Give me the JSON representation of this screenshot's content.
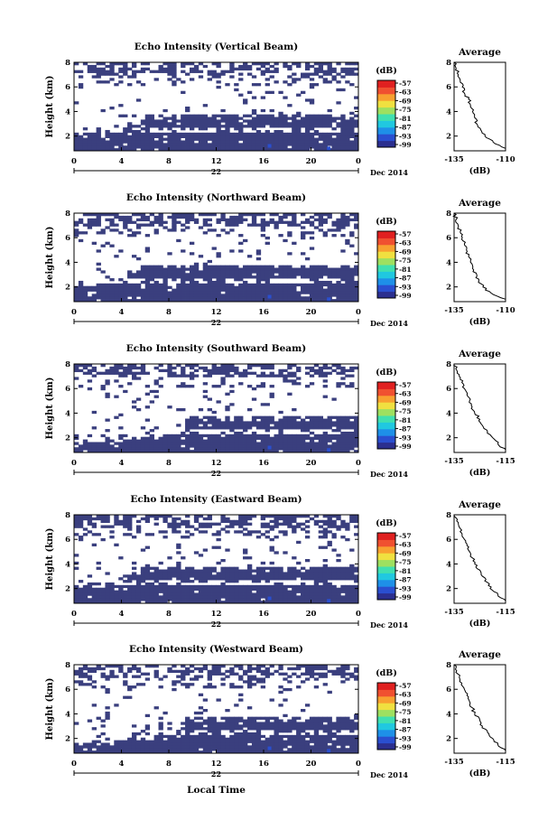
{
  "chart_data": {
    "type": "heatmap",
    "day_label": "22",
    "month_label": "Dec 2014",
    "x_title": "Local Time",
    "time_ticks": [
      "0",
      "4",
      "8",
      "12",
      "16",
      "20",
      "0"
    ],
    "height_ylabel": "Height (km)",
    "height_ticks": [
      "2",
      "4",
      "6",
      "8"
    ],
    "height_range_km": [
      0.8,
      8.0
    ],
    "time_range_hours": [
      0,
      24
    ],
    "colorbar": {
      "unit": "(dB)",
      "ticks": [
        "-57",
        "-63",
        "-69",
        "-75",
        "-81",
        "-87",
        "-93",
        "-99"
      ],
      "range": [
        -99,
        -57
      ],
      "colors": [
        "#2b2f8f",
        "#2a4fd0",
        "#1e90e8",
        "#20c8e0",
        "#40e0b0",
        "#9ee060",
        "#f0e040",
        "#f8a030",
        "#f05030",
        "#e02020"
      ]
    },
    "background_echo_color": "#3a3f7e",
    "average_profile_title": "Average",
    "average_xlabel": "(dB)",
    "panels": [
      {
        "title": "Echo Intensity (Vertical Beam)",
        "boundary_layer_top_km": [
          2.3,
          2.3,
          2.3,
          2.4,
          2.5,
          3.2,
          3.7,
          3.7,
          3.7,
          3.7,
          3.8,
          3.8,
          3.7,
          3.7,
          3.7,
          3.7,
          3.7,
          3.8,
          3.8,
          3.8,
          3.8,
          3.7,
          3.7,
          3.7,
          3.7
        ],
        "average_ticks": [
          "-135",
          "-110"
        ],
        "average_range": [
          -135,
          -110
        ],
        "average_profile": [
          [
            -110,
            1
          ],
          [
            -116,
            1.5
          ],
          [
            -120,
            2
          ],
          [
            -122,
            2.5
          ],
          [
            -124,
            3
          ],
          [
            -125,
            3.5
          ],
          [
            -126,
            4
          ],
          [
            -127,
            4.5
          ],
          [
            -128,
            5
          ],
          [
            -130,
            5.5
          ],
          [
            -131,
            6
          ],
          [
            -132,
            6.5
          ],
          [
            -133,
            7
          ],
          [
            -134,
            7.5
          ],
          [
            -135,
            8
          ]
        ]
      },
      {
        "title": "Echo Intensity (Northward Beam)",
        "boundary_layer_top_km": [
          2.3,
          2.3,
          2.3,
          2.3,
          2.5,
          3.3,
          3.7,
          3.8,
          3.8,
          3.8,
          3.8,
          3.8,
          3.8,
          3.8,
          3.8,
          3.8,
          3.8,
          3.8,
          3.8,
          3.8,
          3.8,
          3.8,
          3.8,
          3.8,
          3.8
        ],
        "average_ticks": [
          "-135",
          "-110"
        ],
        "average_range": [
          -135,
          -110
        ],
        "average_profile": [
          [
            -110,
            1
          ],
          [
            -117,
            1.5
          ],
          [
            -121,
            2
          ],
          [
            -123,
            2.5
          ],
          [
            -124,
            3
          ],
          [
            -126,
            3.5
          ],
          [
            -127,
            4
          ],
          [
            -128,
            4.5
          ],
          [
            -129,
            5
          ],
          [
            -130,
            5.5
          ],
          [
            -131,
            6
          ],
          [
            -132,
            6.5
          ],
          [
            -133,
            7
          ],
          [
            -134,
            7.5
          ],
          [
            -135,
            8
          ]
        ]
      },
      {
        "title": "Echo Intensity (Southward Beam)",
        "boundary_layer_top_km": [
          1.6,
          1.6,
          1.7,
          1.8,
          1.8,
          1.9,
          2.0,
          2.1,
          2.2,
          2.4,
          3.7,
          3.7,
          3.7,
          3.7,
          3.7,
          3.7,
          3.7,
          3.7,
          3.7,
          3.7,
          3.7,
          3.7,
          3.7,
          3.7,
          3.7
        ],
        "average_ticks": [
          "-135",
          "-115"
        ],
        "average_range": [
          -135,
          -115
        ],
        "average_profile": [
          [
            -115,
            1
          ],
          [
            -118,
            1.5
          ],
          [
            -120,
            2
          ],
          [
            -122,
            2.5
          ],
          [
            -124,
            3
          ],
          [
            -125,
            3.5
          ],
          [
            -127,
            4
          ],
          [
            -128,
            4.5
          ],
          [
            -129,
            5
          ],
          [
            -130,
            5.5
          ],
          [
            -131,
            6
          ],
          [
            -132,
            6.5
          ],
          [
            -133,
            7
          ],
          [
            -134,
            7.5
          ],
          [
            -135,
            8
          ]
        ]
      },
      {
        "title": "Echo Intensity (Eastward Beam)",
        "boundary_layer_top_km": [
          2.4,
          2.4,
          2.4,
          2.5,
          2.6,
          3.3,
          3.8,
          3.8,
          3.8,
          3.8,
          3.8,
          3.8,
          3.8,
          3.8,
          3.8,
          3.8,
          3.8,
          3.8,
          3.8,
          3.8,
          3.8,
          3.8,
          3.8,
          3.8,
          3.8
        ],
        "average_ticks": [
          "-135",
          "-115"
        ],
        "average_range": [
          -135,
          -115
        ],
        "average_profile": [
          [
            -115,
            1
          ],
          [
            -118,
            1.5
          ],
          [
            -121,
            2
          ],
          [
            -122,
            2.5
          ],
          [
            -124,
            3
          ],
          [
            -125,
            3.5
          ],
          [
            -127,
            4
          ],
          [
            -128,
            4.5
          ],
          [
            -129,
            5
          ],
          [
            -130,
            5.5
          ],
          [
            -131,
            6
          ],
          [
            -132,
            6.5
          ],
          [
            -133,
            7
          ],
          [
            -134,
            7.5
          ],
          [
            -135,
            8
          ]
        ]
      },
      {
        "title": "Echo Intensity (Westward Beam)",
        "boundary_layer_top_km": [
          1.7,
          1.7,
          1.8,
          1.8,
          1.9,
          2.0,
          2.1,
          2.2,
          2.3,
          2.5,
          3.7,
          3.7,
          3.7,
          3.7,
          3.7,
          3.7,
          3.7,
          3.7,
          3.7,
          3.7,
          3.7,
          3.7,
          3.7,
          3.7,
          3.7
        ],
        "average_ticks": [
          "-135",
          "-115"
        ],
        "average_range": [
          -135,
          -115
        ],
        "average_profile": [
          [
            -115,
            1
          ],
          [
            -118,
            1.5
          ],
          [
            -120,
            2
          ],
          [
            -122,
            2.5
          ],
          [
            -124,
            3
          ],
          [
            -125,
            3.5
          ],
          [
            -127,
            4
          ],
          [
            -128,
            4.5
          ],
          [
            -129,
            5
          ],
          [
            -130,
            5.5
          ],
          [
            -131,
            6
          ],
          [
            -132,
            6.5
          ],
          [
            -133,
            7
          ],
          [
            -134,
            7.5
          ],
          [
            -135,
            8
          ]
        ]
      }
    ]
  }
}
